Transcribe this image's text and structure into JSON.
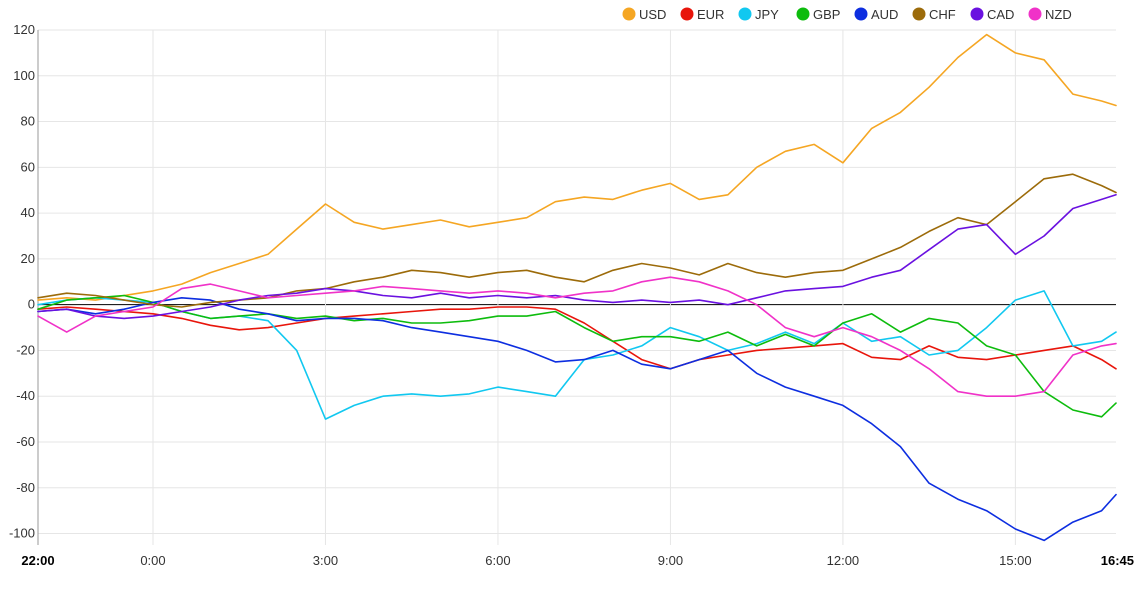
{
  "chart_data": {
    "type": "line",
    "xlabel": "",
    "ylabel": "",
    "ylim": [
      -105,
      120
    ],
    "xlim": [
      "22:00",
      "16:45"
    ],
    "yticks": [
      120,
      100,
      80,
      60,
      40,
      20,
      0,
      -20,
      -40,
      -60,
      -80,
      -100
    ],
    "xticks": [
      {
        "label": "22:00",
        "x": 0,
        "bold": true
      },
      {
        "label": "0:00",
        "x": 2,
        "bold": false
      },
      {
        "label": "3:00",
        "x": 5,
        "bold": false
      },
      {
        "label": "6:00",
        "x": 8,
        "bold": false
      },
      {
        "label": "9:00",
        "x": 11,
        "bold": false
      },
      {
        "label": "12:00",
        "x": 14,
        "bold": false
      },
      {
        "label": "15:00",
        "x": 17,
        "bold": false
      },
      {
        "label": "16:45",
        "x": 18.75,
        "bold": true
      }
    ],
    "grid": true,
    "legend_position": "top-right",
    "series": [
      {
        "name": "USD",
        "color": "#f5a623",
        "points": [
          [
            0,
            2
          ],
          [
            0.5,
            3
          ],
          [
            1,
            2
          ],
          [
            1.5,
            4
          ],
          [
            2,
            6
          ],
          [
            2.5,
            9
          ],
          [
            3,
            14
          ],
          [
            3.5,
            18
          ],
          [
            4,
            22
          ],
          [
            4.5,
            33
          ],
          [
            5,
            44
          ],
          [
            5.5,
            36
          ],
          [
            6,
            33
          ],
          [
            6.5,
            35
          ],
          [
            7,
            37
          ],
          [
            7.5,
            34
          ],
          [
            8,
            36
          ],
          [
            8.5,
            38
          ],
          [
            9,
            45
          ],
          [
            9.5,
            47
          ],
          [
            10,
            46
          ],
          [
            10.5,
            50
          ],
          [
            11,
            53
          ],
          [
            11.5,
            46
          ],
          [
            12,
            48
          ],
          [
            12.5,
            60
          ],
          [
            13,
            67
          ],
          [
            13.5,
            70
          ],
          [
            14,
            62
          ],
          [
            14.5,
            77
          ],
          [
            15,
            84
          ],
          [
            15.5,
            95
          ],
          [
            16,
            108
          ],
          [
            16.5,
            118
          ],
          [
            17,
            110
          ],
          [
            17.5,
            107
          ],
          [
            18,
            92
          ],
          [
            18.5,
            89
          ],
          [
            18.75,
            87
          ]
        ]
      },
      {
        "name": "EUR",
        "color": "#e8150b",
        "points": [
          [
            0,
            -2
          ],
          [
            0.5,
            -1
          ],
          [
            1,
            -2
          ],
          [
            1.5,
            -3
          ],
          [
            2,
            -4
          ],
          [
            2.5,
            -6
          ],
          [
            3,
            -9
          ],
          [
            3.5,
            -11
          ],
          [
            4,
            -10
          ],
          [
            4.5,
            -8
          ],
          [
            5,
            -6
          ],
          [
            5.5,
            -5
          ],
          [
            6,
            -4
          ],
          [
            6.5,
            -3
          ],
          [
            7,
            -2
          ],
          [
            7.5,
            -2
          ],
          [
            8,
            -1
          ],
          [
            8.5,
            -1
          ],
          [
            9,
            -2
          ],
          [
            9.5,
            -8
          ],
          [
            10,
            -16
          ],
          [
            10.5,
            -24
          ],
          [
            11,
            -28
          ],
          [
            11.5,
            -24
          ],
          [
            12,
            -22
          ],
          [
            12.5,
            -20
          ],
          [
            13,
            -19
          ],
          [
            13.5,
            -18
          ],
          [
            14,
            -17
          ],
          [
            14.5,
            -23
          ],
          [
            15,
            -24
          ],
          [
            15.5,
            -18
          ],
          [
            16,
            -23
          ],
          [
            16.5,
            -24
          ],
          [
            17,
            -22
          ],
          [
            17.5,
            -20
          ],
          [
            18,
            -18
          ],
          [
            18.5,
            -24
          ],
          [
            18.75,
            -28
          ]
        ]
      },
      {
        "name": "JPY",
        "color": "#11c8f0",
        "points": [
          [
            0,
            0
          ],
          [
            0.5,
            2
          ],
          [
            1,
            3
          ],
          [
            1.5,
            2
          ],
          [
            2,
            1
          ],
          [
            2.5,
            -3
          ],
          [
            3,
            -6
          ],
          [
            3.5,
            -5
          ],
          [
            4,
            -7
          ],
          [
            4.5,
            -20
          ],
          [
            5,
            -50
          ],
          [
            5.5,
            -44
          ],
          [
            6,
            -40
          ],
          [
            6.5,
            -39
          ],
          [
            7,
            -40
          ],
          [
            7.5,
            -39
          ],
          [
            8,
            -36
          ],
          [
            8.5,
            -38
          ],
          [
            9,
            -40
          ],
          [
            9.5,
            -24
          ],
          [
            10,
            -22
          ],
          [
            10.5,
            -18
          ],
          [
            11,
            -10
          ],
          [
            11.5,
            -14
          ],
          [
            12,
            -20
          ],
          [
            12.5,
            -17
          ],
          [
            13,
            -12
          ],
          [
            13.5,
            -17
          ],
          [
            14,
            -8
          ],
          [
            14.5,
            -16
          ],
          [
            15,
            -14
          ],
          [
            15.5,
            -22
          ],
          [
            16,
            -20
          ],
          [
            16.5,
            -10
          ],
          [
            17,
            2
          ],
          [
            17.5,
            6
          ],
          [
            18,
            -18
          ],
          [
            18.5,
            -16
          ],
          [
            18.75,
            -12
          ]
        ]
      },
      {
        "name": "GBP",
        "color": "#0dbc0d",
        "points": [
          [
            0,
            -2
          ],
          [
            0.5,
            2
          ],
          [
            1,
            3
          ],
          [
            1.5,
            4
          ],
          [
            2,
            1
          ],
          [
            2.5,
            -3
          ],
          [
            3,
            -6
          ],
          [
            3.5,
            -5
          ],
          [
            4,
            -4
          ],
          [
            4.5,
            -6
          ],
          [
            5,
            -5
          ],
          [
            5.5,
            -7
          ],
          [
            6,
            -6
          ],
          [
            6.5,
            -8
          ],
          [
            7,
            -8
          ],
          [
            7.5,
            -7
          ],
          [
            8,
            -5
          ],
          [
            8.5,
            -5
          ],
          [
            9,
            -3
          ],
          [
            9.5,
            -10
          ],
          [
            10,
            -16
          ],
          [
            10.5,
            -14
          ],
          [
            11,
            -14
          ],
          [
            11.5,
            -16
          ],
          [
            12,
            -12
          ],
          [
            12.5,
            -18
          ],
          [
            13,
            -13
          ],
          [
            13.5,
            -18
          ],
          [
            14,
            -8
          ],
          [
            14.5,
            -4
          ],
          [
            15,
            -12
          ],
          [
            15.5,
            -6
          ],
          [
            16,
            -8
          ],
          [
            16.5,
            -18
          ],
          [
            17,
            -22
          ],
          [
            17.5,
            -38
          ],
          [
            18,
            -46
          ],
          [
            18.5,
            -49
          ],
          [
            18.75,
            -43
          ]
        ]
      },
      {
        "name": "AUD",
        "color": "#0d2ee0",
        "points": [
          [
            0,
            -3
          ],
          [
            0.5,
            -2
          ],
          [
            1,
            -4
          ],
          [
            1.5,
            -2
          ],
          [
            2,
            1
          ],
          [
            2.5,
            3
          ],
          [
            3,
            2
          ],
          [
            3.5,
            -2
          ],
          [
            4,
            -4
          ],
          [
            4.5,
            -7
          ],
          [
            5,
            -6
          ],
          [
            5.5,
            -6
          ],
          [
            6,
            -7
          ],
          [
            6.5,
            -10
          ],
          [
            7,
            -12
          ],
          [
            7.5,
            -14
          ],
          [
            8,
            -16
          ],
          [
            8.5,
            -20
          ],
          [
            9,
            -25
          ],
          [
            9.5,
            -24
          ],
          [
            10,
            -20
          ],
          [
            10.5,
            -26
          ],
          [
            11,
            -28
          ],
          [
            11.5,
            -24
          ],
          [
            12,
            -20
          ],
          [
            12.5,
            -30
          ],
          [
            13,
            -36
          ],
          [
            13.5,
            -40
          ],
          [
            14,
            -44
          ],
          [
            14.5,
            -52
          ],
          [
            15,
            -62
          ],
          [
            15.5,
            -78
          ],
          [
            16,
            -85
          ],
          [
            16.5,
            -90
          ],
          [
            17,
            -98
          ],
          [
            17.5,
            -103
          ],
          [
            18,
            -95
          ],
          [
            18.5,
            -90
          ],
          [
            18.75,
            -83
          ]
        ]
      },
      {
        "name": "CHF",
        "color": "#9c6b0a",
        "points": [
          [
            0,
            3
          ],
          [
            0.5,
            5
          ],
          [
            1,
            4
          ],
          [
            1.5,
            2
          ],
          [
            2,
            0
          ],
          [
            2.5,
            -1
          ],
          [
            3,
            1
          ],
          [
            3.5,
            2
          ],
          [
            4,
            3
          ],
          [
            4.5,
            6
          ],
          [
            5,
            7
          ],
          [
            5.5,
            10
          ],
          [
            6,
            12
          ],
          [
            6.5,
            15
          ],
          [
            7,
            14
          ],
          [
            7.5,
            12
          ],
          [
            8,
            14
          ],
          [
            8.5,
            15
          ],
          [
            9,
            12
          ],
          [
            9.5,
            10
          ],
          [
            10,
            15
          ],
          [
            10.5,
            18
          ],
          [
            11,
            16
          ],
          [
            11.5,
            13
          ],
          [
            12,
            18
          ],
          [
            12.5,
            14
          ],
          [
            13,
            12
          ],
          [
            13.5,
            14
          ],
          [
            14,
            15
          ],
          [
            14.5,
            20
          ],
          [
            15,
            25
          ],
          [
            15.5,
            32
          ],
          [
            16,
            38
          ],
          [
            16.5,
            35
          ],
          [
            17,
            45
          ],
          [
            17.5,
            55
          ],
          [
            18,
            57
          ],
          [
            18.5,
            52
          ],
          [
            18.75,
            49
          ]
        ]
      },
      {
        "name": "CAD",
        "color": "#6a11e0",
        "points": [
          [
            0,
            -3
          ],
          [
            0.5,
            -2
          ],
          [
            1,
            -5
          ],
          [
            1.5,
            -6
          ],
          [
            2,
            -5
          ],
          [
            2.5,
            -3
          ],
          [
            3,
            -1
          ],
          [
            3.5,
            2
          ],
          [
            4,
            4
          ],
          [
            4.5,
            5
          ],
          [
            5,
            7
          ],
          [
            5.5,
            6
          ],
          [
            6,
            4
          ],
          [
            6.5,
            3
          ],
          [
            7,
            5
          ],
          [
            7.5,
            3
          ],
          [
            8,
            4
          ],
          [
            8.5,
            3
          ],
          [
            9,
            4
          ],
          [
            9.5,
            2
          ],
          [
            10,
            1
          ],
          [
            10.5,
            2
          ],
          [
            11,
            1
          ],
          [
            11.5,
            2
          ],
          [
            12,
            0
          ],
          [
            12.5,
            3
          ],
          [
            13,
            6
          ],
          [
            13.5,
            7
          ],
          [
            14,
            8
          ],
          [
            14.5,
            12
          ],
          [
            15,
            15
          ],
          [
            15.5,
            24
          ],
          [
            16,
            33
          ],
          [
            16.5,
            35
          ],
          [
            17,
            22
          ],
          [
            17.5,
            30
          ],
          [
            18,
            42
          ],
          [
            18.5,
            46
          ],
          [
            18.75,
            48
          ]
        ]
      },
      {
        "name": "NZD",
        "color": "#f032c8",
        "points": [
          [
            0,
            -5
          ],
          [
            0.5,
            -12
          ],
          [
            1,
            -5
          ],
          [
            1.5,
            -3
          ],
          [
            2,
            -1
          ],
          [
            2.5,
            7
          ],
          [
            3,
            9
          ],
          [
            3.5,
            6
          ],
          [
            4,
            3
          ],
          [
            4.5,
            4
          ],
          [
            5,
            5
          ],
          [
            5.5,
            6
          ],
          [
            6,
            8
          ],
          [
            6.5,
            7
          ],
          [
            7,
            6
          ],
          [
            7.5,
            5
          ],
          [
            8,
            6
          ],
          [
            8.5,
            5
          ],
          [
            9,
            3
          ],
          [
            9.5,
            5
          ],
          [
            10,
            6
          ],
          [
            10.5,
            10
          ],
          [
            11,
            12
          ],
          [
            11.5,
            10
          ],
          [
            12,
            6
          ],
          [
            12.5,
            0
          ],
          [
            13,
            -10
          ],
          [
            13.5,
            -14
          ],
          [
            14,
            -10
          ],
          [
            14.5,
            -14
          ],
          [
            15,
            -20
          ],
          [
            15.5,
            -28
          ],
          [
            16,
            -38
          ],
          [
            16.5,
            -40
          ],
          [
            17,
            -40
          ],
          [
            17.5,
            -38
          ],
          [
            18,
            -22
          ],
          [
            18.5,
            -18
          ],
          [
            18.75,
            -17
          ]
        ]
      }
    ]
  }
}
